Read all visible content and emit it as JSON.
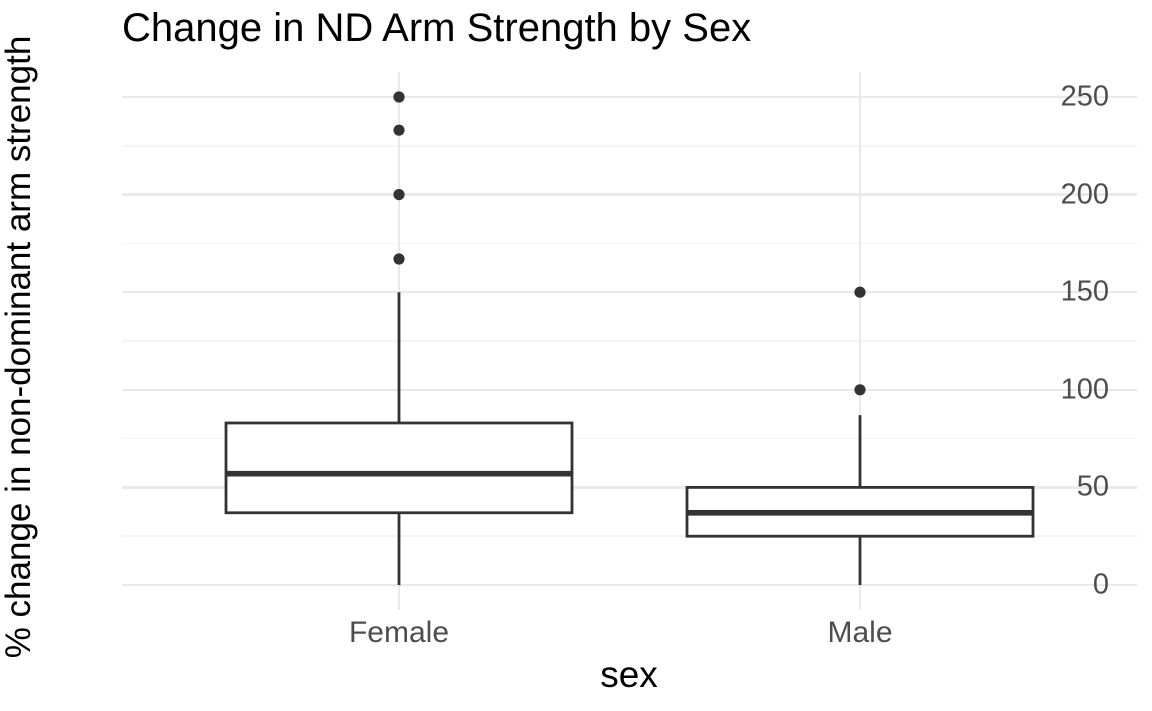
{
  "chart_data": {
    "type": "boxplot",
    "title": "Change in ND Arm Strength by Sex",
    "xlabel": "sex",
    "ylabel": "% change in non-dominant arm strength",
    "categories": [
      "Female",
      "Male"
    ],
    "y_ticks": [
      0,
      50,
      100,
      150,
      200,
      250
    ],
    "y_minor_ticks": [
      25,
      75,
      125,
      175,
      225
    ],
    "ylim": [
      -12.5,
      262.5
    ],
    "grid": {
      "horizontal": "major and minor lines",
      "vertical": "major line at each category",
      "legend_position": "none"
    },
    "series": [
      {
        "name": "Female",
        "whisker_low": 0,
        "q1": 37,
        "median": 57,
        "q3": 83,
        "whisker_high": 150,
        "outliers": [
          167,
          200,
          233,
          250
        ]
      },
      {
        "name": "Male",
        "whisker_low": 0,
        "q1": 25,
        "median": 37,
        "q3": 50,
        "whisker_high": 87,
        "outliers": [
          100,
          150
        ]
      }
    ],
    "colors": {
      "background": "#ffffff",
      "box_stroke": "#333333",
      "box_fill": "#ffffff",
      "median_stroke": "#333333",
      "outlier_fill": "#333333",
      "grid_major": "#e9e9e9",
      "grid_minor": "#f4f4f4",
      "tick_label": "#4d4d4d",
      "title_text": "#000000"
    }
  }
}
